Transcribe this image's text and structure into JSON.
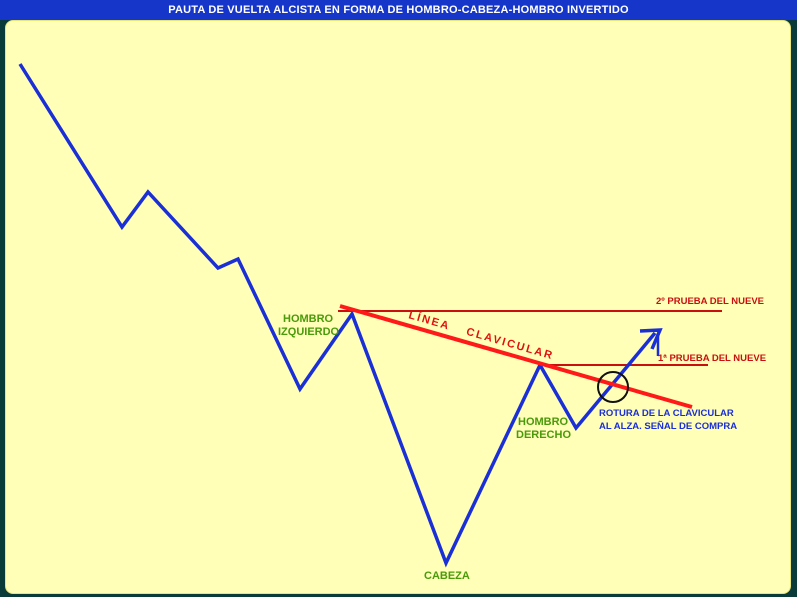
{
  "title": "PAUTA DE VUELTA ALCISTA EN FORMA DE HOMBRO-CABEZA-HOMBRO INVERTIDO",
  "colors": {
    "price_line": "#1a2fd6",
    "neckline": "#ff1a1a",
    "resistance": "#c81010",
    "panel": "#ffffb8",
    "title_bar": "#1636c9"
  },
  "labels": {
    "left_shoulder_1": "HOMBRO",
    "left_shoulder_2": "IZQUIERDO",
    "head": "CABEZA",
    "right_shoulder_1": "HOMBRO",
    "right_shoulder_2": "DERECHO",
    "neckline_word1": "LÍNEA",
    "neckline_word2": "CLAVICULAR",
    "test_2": "2º PRUEBA DEL NUEVE",
    "test_1": "1ª PRUEBA DEL NUEVE",
    "breakout_1": "ROTURA DE LA CLAVICULAR",
    "breakout_2": "AL ALZA. SEÑAL DE COMPRA"
  },
  "icons": {
    "breakout_marker": "circle-marker-icon",
    "arrow": "arrow-up-right-icon"
  }
}
